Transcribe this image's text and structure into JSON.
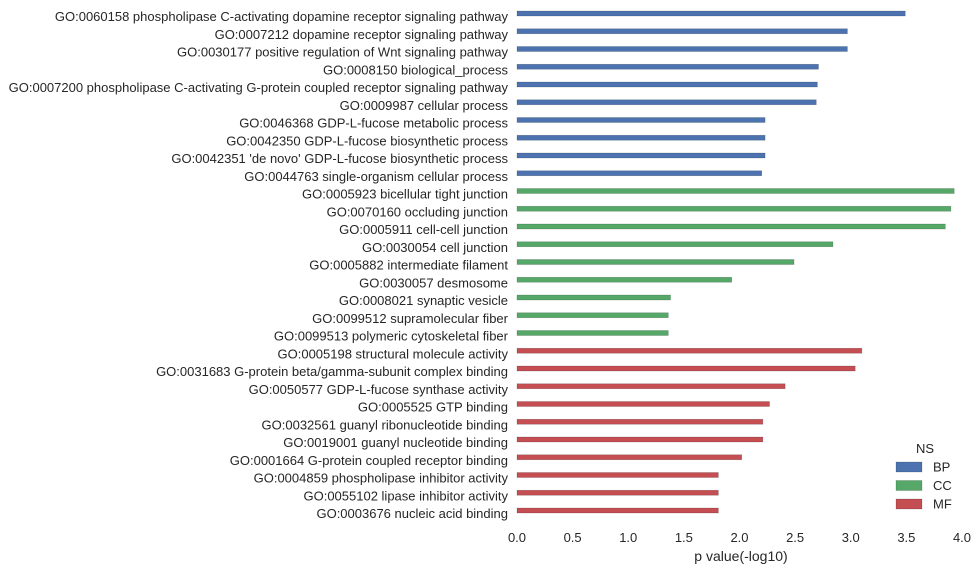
{
  "chart_data": {
    "type": "bar",
    "orientation": "horizontal",
    "xlabel": "p value(-log10)",
    "ylabel": "",
    "xlim": [
      0,
      4.0
    ],
    "xticks": [
      "0.0",
      "0.5",
      "1.0",
      "1.5",
      "2.0",
      "2.5",
      "3.0",
      "3.5",
      "4.0"
    ],
    "grid": false,
    "legend": {
      "title": "NS",
      "placement": "bottom-right",
      "entries": [
        {
          "name": "BP",
          "color": "#4c72b0"
        },
        {
          "name": "CC",
          "color": "#55a868"
        },
        {
          "name": "MF",
          "color": "#c44e52"
        }
      ]
    },
    "categories": [
      {
        "label": "GO:0060158 phospholipase C-activating dopamine receptor signaling pathway",
        "ns": "BP",
        "value": 3.49
      },
      {
        "label": "GO:0007212 dopamine receptor signaling pathway",
        "ns": "BP",
        "value": 2.97
      },
      {
        "label": "GO:0030177 positive regulation of Wnt signaling pathway",
        "ns": "BP",
        "value": 2.97
      },
      {
        "label": "GO:0008150 biological_process",
        "ns": "BP",
        "value": 2.71
      },
      {
        "label": "GO:0007200 phospholipase C-activating G-protein coupled receptor signaling pathway",
        "ns": "BP",
        "value": 2.7
      },
      {
        "label": "GO:0009987 cellular process",
        "ns": "BP",
        "value": 2.69
      },
      {
        "label": "GO:0046368 GDP-L-fucose metabolic process",
        "ns": "BP",
        "value": 2.23
      },
      {
        "label": "GO:0042350 GDP-L-fucose biosynthetic process",
        "ns": "BP",
        "value": 2.23
      },
      {
        "label": "GO:0042351 'de novo' GDP-L-fucose biosynthetic process",
        "ns": "BP",
        "value": 2.23
      },
      {
        "label": "GO:0044763 single-organism cellular process",
        "ns": "BP",
        "value": 2.2
      },
      {
        "label": "GO:0005923 bicellular tight junction",
        "ns": "CC",
        "value": 3.93
      },
      {
        "label": "GO:0070160 occluding junction",
        "ns": "CC",
        "value": 3.9
      },
      {
        "label": "GO:0005911 cell-cell junction",
        "ns": "CC",
        "value": 3.85
      },
      {
        "label": "GO:0030054 cell junction",
        "ns": "CC",
        "value": 2.84
      },
      {
        "label": "GO:0005882 intermediate filament",
        "ns": "CC",
        "value": 2.49
      },
      {
        "label": "GO:0030057 desmosome",
        "ns": "CC",
        "value": 1.93
      },
      {
        "label": "GO:0008021 synaptic vesicle",
        "ns": "CC",
        "value": 1.38
      },
      {
        "label": "GO:0099512 supramolecular fiber",
        "ns": "CC",
        "value": 1.36
      },
      {
        "label": "GO:0099513 polymeric cytoskeletal fiber",
        "ns": "CC",
        "value": 1.36
      },
      {
        "label": "GO:0005198 structural molecule activity",
        "ns": "MF",
        "value": 3.1
      },
      {
        "label": "GO:0031683 G-protein beta/gamma-subunit complex binding",
        "ns": "MF",
        "value": 3.04
      },
      {
        "label": "GO:0050577 GDP-L-fucose synthase activity",
        "ns": "MF",
        "value": 2.41
      },
      {
        "label": "GO:0005525 GTP binding",
        "ns": "MF",
        "value": 2.27
      },
      {
        "label": "GO:0032561 guanyl ribonucleotide binding",
        "ns": "MF",
        "value": 2.21
      },
      {
        "label": "GO:0019001 guanyl nucleotide binding",
        "ns": "MF",
        "value": 2.21
      },
      {
        "label": "GO:0001664 G-protein coupled receptor binding",
        "ns": "MF",
        "value": 2.02
      },
      {
        "label": "GO:0004859 phospholipase inhibitor activity",
        "ns": "MF",
        "value": 1.81
      },
      {
        "label": "GO:0055102 lipase inhibitor activity",
        "ns": "MF",
        "value": 1.81
      },
      {
        "label": "GO:0003676 nucleic acid binding",
        "ns": "MF",
        "value": 1.81
      }
    ]
  }
}
